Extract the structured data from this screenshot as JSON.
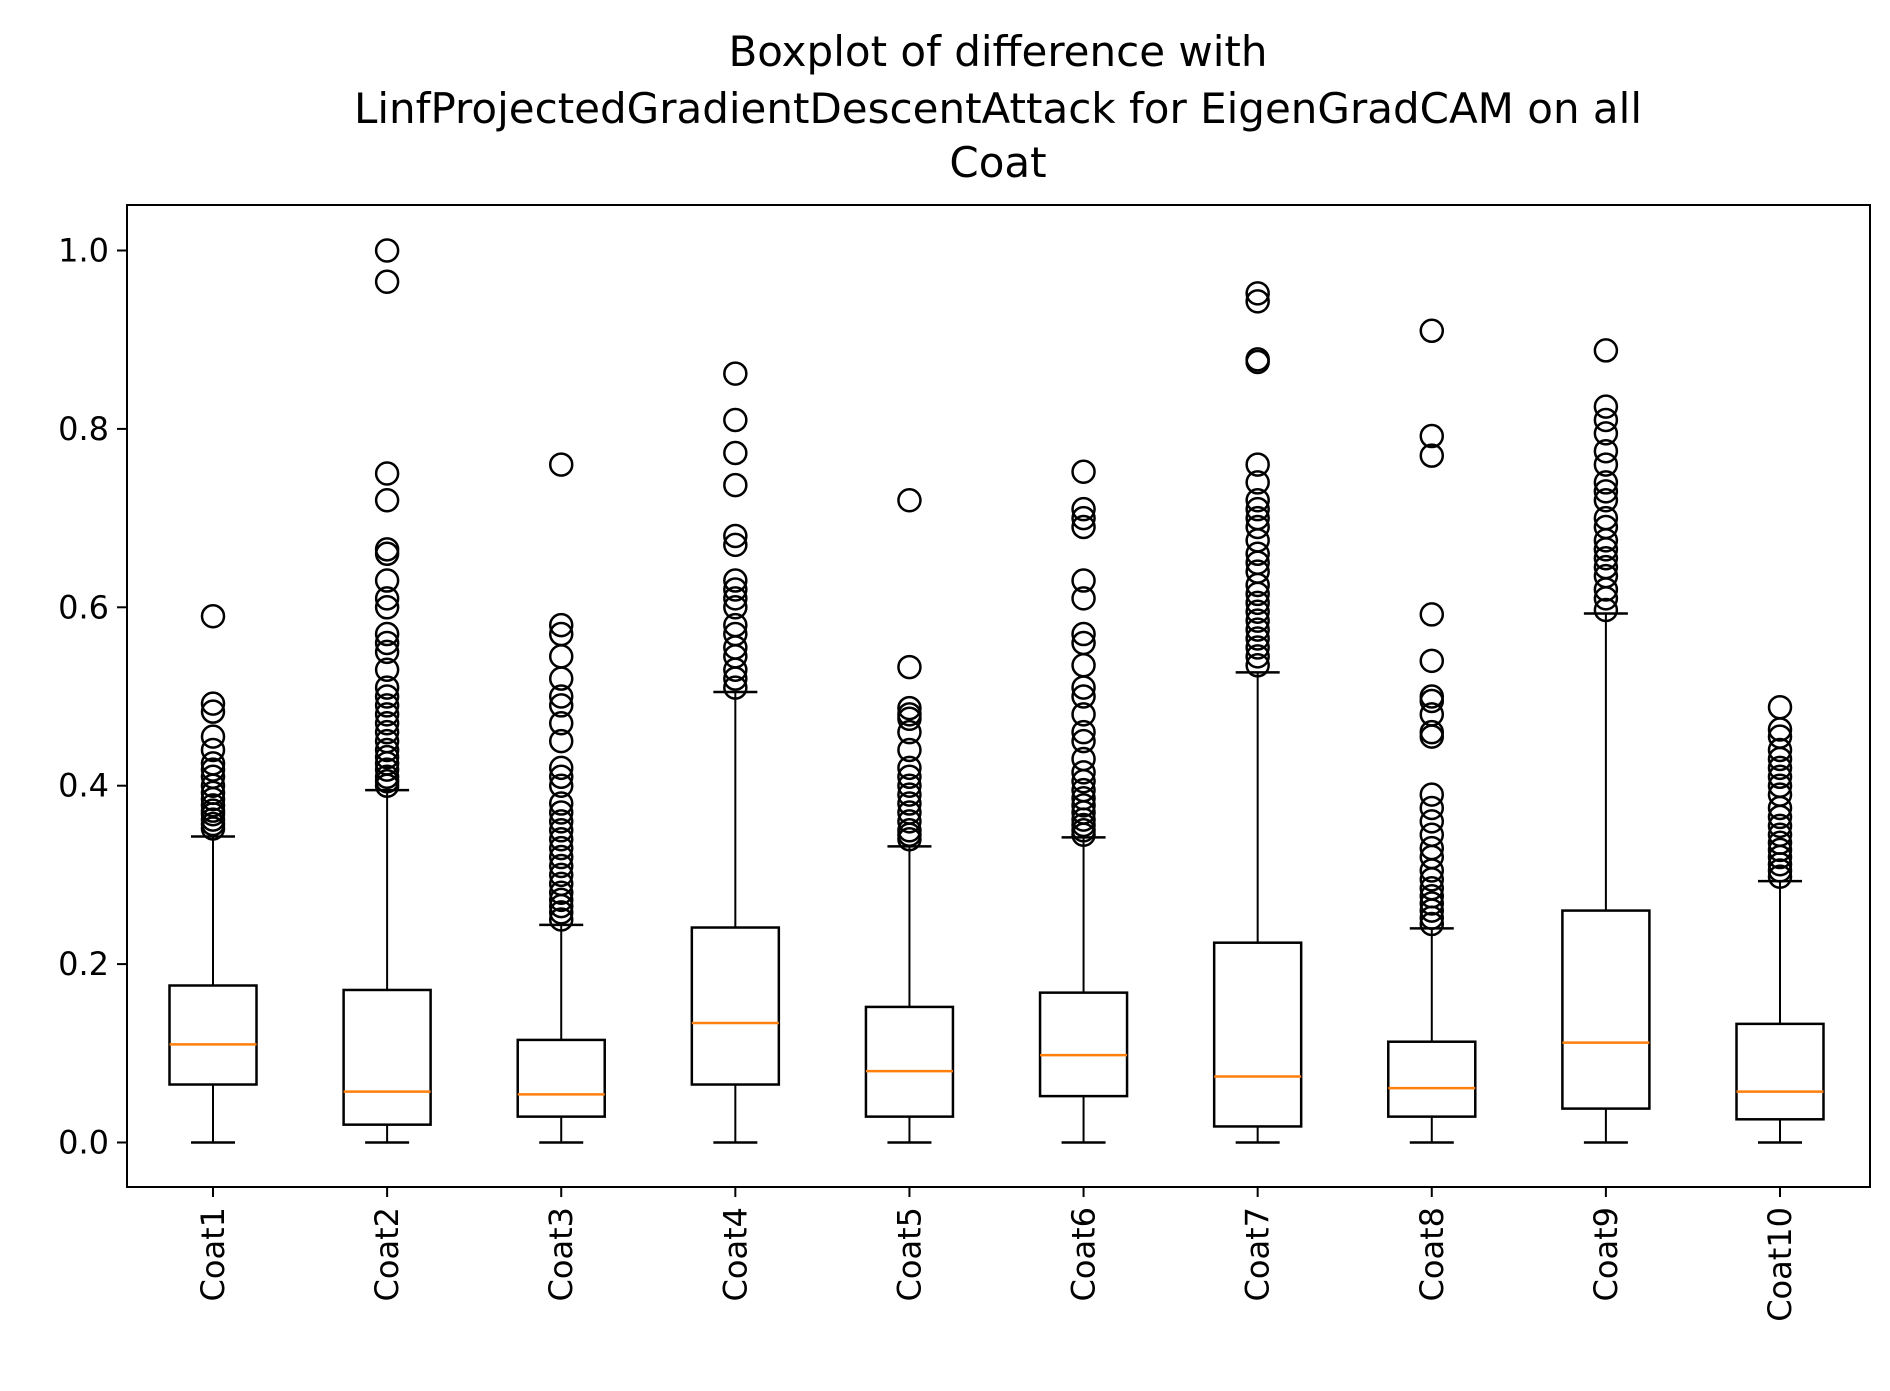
{
  "chart_data": {
    "type": "box",
    "title": [
      "Boxplot of difference with",
      "LinfProjectedGradientDescentAttack for EigenGradCAM on all",
      "Coat"
    ],
    "xlabel": "",
    "ylabel": "",
    "ylim": [
      -0.05,
      1.05
    ],
    "yticks": [
      "0.0",
      "0.2",
      "0.4",
      "0.6",
      "0.8",
      "1.0"
    ],
    "ytick_values": [
      0.0,
      0.2,
      0.4,
      0.6,
      0.8,
      1.0
    ],
    "grid": false,
    "legend": "none",
    "colors": {
      "box": "#000000",
      "median": "#ff7f0e",
      "flier": "#000000"
    },
    "categories": [
      "Coat1",
      "Coat2",
      "Coat3",
      "Coat4",
      "Coat5",
      "Coat6",
      "Coat7",
      "Coat8",
      "Coat9",
      "Coat10"
    ],
    "boxes": [
      {
        "label": "Coat1",
        "whislo": 0.0,
        "q1": 0.065,
        "med": 0.11,
        "q3": 0.176,
        "whishi": 0.343,
        "fliers": [
          0.352,
          0.357,
          0.362,
          0.368,
          0.372,
          0.378,
          0.385,
          0.392,
          0.4,
          0.41,
          0.418,
          0.425,
          0.44,
          0.455,
          0.483,
          0.492,
          0.59
        ]
      },
      {
        "label": "Coat2",
        "whislo": 0.0,
        "q1": 0.02,
        "med": 0.057,
        "q3": 0.171,
        "whishi": 0.395,
        "fliers": [
          0.4,
          0.405,
          0.41,
          0.418,
          0.425,
          0.432,
          0.44,
          0.45,
          0.46,
          0.47,
          0.48,
          0.49,
          0.5,
          0.51,
          0.53,
          0.55,
          0.56,
          0.57,
          0.6,
          0.61,
          0.63,
          0.66,
          0.665,
          0.72,
          0.75,
          0.965,
          1.0
        ]
      },
      {
        "label": "Coat3",
        "whislo": 0.0,
        "q1": 0.029,
        "med": 0.054,
        "q3": 0.115,
        "whishi": 0.244,
        "fliers": [
          0.25,
          0.258,
          0.265,
          0.272,
          0.28,
          0.29,
          0.3,
          0.31,
          0.32,
          0.33,
          0.34,
          0.35,
          0.36,
          0.37,
          0.38,
          0.4,
          0.41,
          0.42,
          0.45,
          0.47,
          0.49,
          0.5,
          0.52,
          0.545,
          0.57,
          0.58,
          0.76
        ]
      },
      {
        "label": "Coat4",
        "whislo": 0.0,
        "q1": 0.065,
        "med": 0.134,
        "q3": 0.241,
        "whishi": 0.505,
        "fliers": [
          0.51,
          0.52,
          0.53,
          0.545,
          0.555,
          0.57,
          0.58,
          0.6,
          0.61,
          0.62,
          0.63,
          0.67,
          0.68,
          0.737,
          0.773,
          0.81,
          0.862
        ]
      },
      {
        "label": "Coat5",
        "whislo": 0.0,
        "q1": 0.029,
        "med": 0.08,
        "q3": 0.152,
        "whishi": 0.332,
        "fliers": [
          0.34,
          0.345,
          0.35,
          0.36,
          0.37,
          0.38,
          0.39,
          0.4,
          0.41,
          0.42,
          0.44,
          0.46,
          0.475,
          0.48,
          0.487,
          0.533,
          0.72
        ]
      },
      {
        "label": "Coat6",
        "whislo": 0.0,
        "q1": 0.052,
        "med": 0.098,
        "q3": 0.168,
        "whishi": 0.342,
        "fliers": [
          0.345,
          0.35,
          0.356,
          0.362,
          0.37,
          0.378,
          0.386,
          0.395,
          0.405,
          0.415,
          0.43,
          0.45,
          0.46,
          0.48,
          0.5,
          0.51,
          0.535,
          0.56,
          0.57,
          0.61,
          0.63,
          0.69,
          0.7,
          0.71,
          0.752
        ]
      },
      {
        "label": "Coat7",
        "whislo": 0.0,
        "q1": 0.018,
        "med": 0.074,
        "q3": 0.224,
        "whishi": 0.527,
        "fliers": [
          0.535,
          0.545,
          0.555,
          0.565,
          0.575,
          0.585,
          0.595,
          0.605,
          0.615,
          0.625,
          0.64,
          0.65,
          0.66,
          0.675,
          0.69,
          0.7,
          0.71,
          0.72,
          0.74,
          0.76,
          0.875,
          0.878,
          0.943,
          0.952
        ]
      },
      {
        "label": "Coat8",
        "whislo": 0.0,
        "q1": 0.029,
        "med": 0.061,
        "q3": 0.113,
        "whishi": 0.24,
        "fliers": [
          0.245,
          0.252,
          0.26,
          0.268,
          0.276,
          0.285,
          0.295,
          0.305,
          0.32,
          0.33,
          0.345,
          0.36,
          0.375,
          0.39,
          0.455,
          0.46,
          0.48,
          0.495,
          0.5,
          0.54,
          0.592,
          0.77,
          0.792,
          0.91
        ]
      },
      {
        "label": "Coat9",
        "whislo": 0.0,
        "q1": 0.038,
        "med": 0.112,
        "q3": 0.26,
        "whishi": 0.593,
        "fliers": [
          0.597,
          0.61,
          0.62,
          0.635,
          0.645,
          0.655,
          0.665,
          0.675,
          0.69,
          0.7,
          0.72,
          0.73,
          0.74,
          0.76,
          0.775,
          0.795,
          0.81,
          0.825,
          0.888
        ]
      },
      {
        "label": "Coat10",
        "whislo": 0.0,
        "q1": 0.026,
        "med": 0.057,
        "q3": 0.133,
        "whishi": 0.293,
        "fliers": [
          0.298,
          0.305,
          0.312,
          0.32,
          0.328,
          0.336,
          0.345,
          0.355,
          0.365,
          0.375,
          0.39,
          0.4,
          0.41,
          0.42,
          0.43,
          0.44,
          0.455,
          0.463,
          0.488
        ]
      }
    ]
  }
}
